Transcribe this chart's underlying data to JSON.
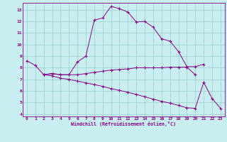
{
  "title": "",
  "xlabel": "Windchill (Refroidissement éolien,°C)",
  "background_color": "#c8eef0",
  "line_color": "#880088",
  "grid_color": "#99cccc",
  "xlim": [
    -0.5,
    23.5
  ],
  "ylim": [
    3.8,
    13.6
  ],
  "yticks": [
    4,
    5,
    6,
    7,
    8,
    9,
    10,
    11,
    12,
    13
  ],
  "xticks": [
    0,
    1,
    2,
    3,
    4,
    5,
    6,
    7,
    8,
    9,
    10,
    11,
    12,
    13,
    14,
    15,
    16,
    17,
    18,
    19,
    20,
    21,
    22,
    23
  ],
  "line1_x": [
    0,
    1,
    2,
    3,
    4,
    5,
    6,
    7,
    8,
    9,
    10,
    11,
    12,
    13,
    14,
    15,
    16,
    17,
    18,
    19,
    20,
    21
  ],
  "line1_y": [
    8.6,
    8.2,
    7.4,
    7.5,
    7.4,
    7.4,
    8.5,
    9.0,
    12.1,
    12.3,
    13.3,
    13.1,
    12.8,
    11.95,
    12.0,
    11.5,
    10.5,
    10.3,
    9.4,
    8.1,
    8.1,
    8.3
  ],
  "line2_x": [
    2,
    3,
    4,
    5,
    6,
    7,
    8,
    9,
    10,
    11,
    12,
    13,
    14,
    15,
    16,
    17,
    18,
    19,
    20
  ],
  "line2_y": [
    7.4,
    7.5,
    7.4,
    7.4,
    7.4,
    7.5,
    7.6,
    7.7,
    7.8,
    7.85,
    7.9,
    8.0,
    8.0,
    8.0,
    8.0,
    8.05,
    8.05,
    8.05,
    7.4
  ],
  "line3_x": [
    2,
    3,
    4,
    5,
    6,
    7,
    8,
    9,
    10,
    11,
    12,
    13,
    14,
    15,
    16,
    17,
    18,
    19,
    20,
    21,
    22,
    23
  ],
  "line3_y": [
    7.4,
    7.3,
    7.1,
    7.0,
    6.85,
    6.7,
    6.55,
    6.4,
    6.2,
    6.05,
    5.88,
    5.7,
    5.5,
    5.3,
    5.1,
    4.95,
    4.75,
    4.55,
    4.5,
    6.75,
    5.35,
    4.5
  ]
}
